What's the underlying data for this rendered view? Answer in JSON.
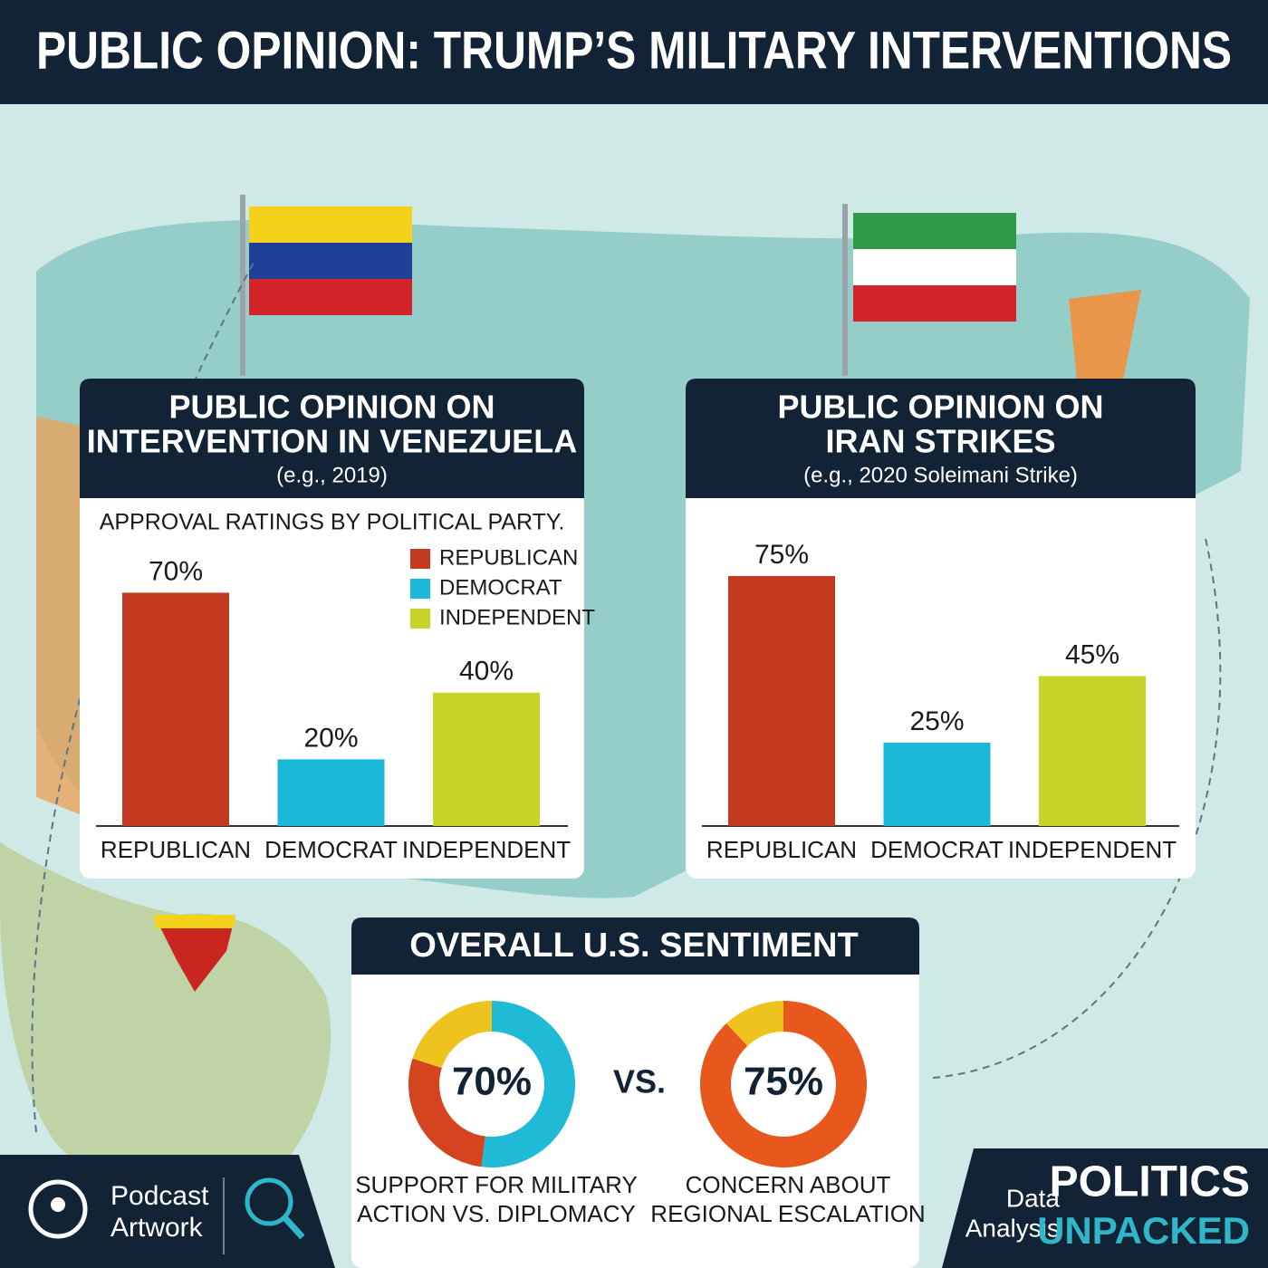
{
  "title": "PUBLIC OPINION: TRUMP’S MILITARY INTERVENTIONS",
  "chart_data": [
    {
      "type": "bar",
      "title": [
        "PUBLIC OPINION ON",
        "INTERVENTION IN VENEZUELA"
      ],
      "subtitle": "(e.g., 2019)",
      "caption": "APPROVAL RATINGS BY POLITICAL PARTY.",
      "categories": [
        "REPUBLICAN",
        "DEMOCRAT",
        "INDEPENDENT"
      ],
      "values": [
        70,
        20,
        40
      ],
      "value_labels": [
        "70%",
        "20%",
        "40%"
      ],
      "colors": [
        "#c23a1f",
        "#1bb8d8",
        "#c9d42a"
      ],
      "legend": [
        "REPUBLICAN",
        "DEMOCRAT",
        "INDEPENDENT"
      ]
    },
    {
      "type": "bar",
      "title": [
        "PUBLIC OPINION ON",
        "IRAN STRIKES"
      ],
      "subtitle": "(e.g., 2020 Soleimani Strike)",
      "categories": [
        "REPUBLICAN",
        "DEMOCRAT",
        "INDEPENDENT"
      ],
      "values": [
        75,
        25,
        45
      ],
      "value_labels": [
        "75%",
        "25%",
        "45%"
      ],
      "colors": [
        "#c23a1f",
        "#1bb8d8",
        "#c9d42a"
      ]
    },
    {
      "type": "donut",
      "values": [
        52,
        28,
        20
      ],
      "colors": [
        "#1fbad6",
        "#d4451f",
        "#efc31e"
      ],
      "center": {
        "value": 70,
        "label": "70%"
      },
      "caption": [
        "SUPPORT FOR MILITARY",
        "ACTION VS. DIPLOMACY"
      ]
    },
    {
      "type": "donut",
      "values": [
        88,
        12
      ],
      "colors": [
        "#e8581c",
        "#efc31e"
      ],
      "center": {
        "value": 75,
        "label": "75%"
      },
      "caption": [
        "CONCERN ABOUT",
        "REGIONAL ESCALATION"
      ]
    }
  ],
  "sentiment": {
    "title": "OVERALL U.S. SENTIMENT",
    "separator": "VS."
  },
  "footer": {
    "left": [
      "Podcast",
      "Artwork"
    ],
    "small": [
      "Data",
      "Analysis"
    ],
    "brand": [
      "POLITICS",
      "UNPACKED"
    ]
  }
}
